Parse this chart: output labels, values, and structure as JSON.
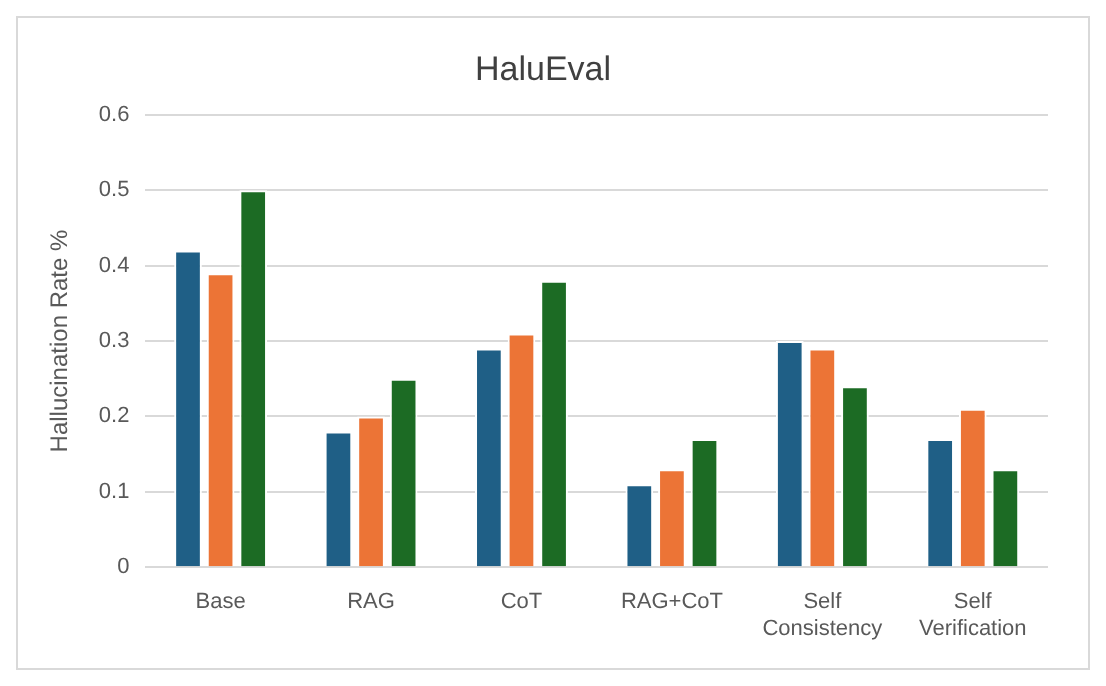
{
  "chart_data": {
    "type": "bar",
    "title": "HaluEval",
    "ylabel": "Hallucination Rate %",
    "categories": [
      "Base",
      "RAG",
      "CoT",
      "RAG+CoT",
      "Self Consistency",
      "Self Verification"
    ],
    "series": [
      {
        "color": "#1f5f86",
        "values": [
          0.42,
          0.18,
          0.29,
          0.11,
          0.3,
          0.17
        ]
      },
      {
        "color": "#ec7436",
        "values": [
          0.39,
          0.2,
          0.31,
          0.13,
          0.29,
          0.21
        ]
      },
      {
        "color": "#1c6b24",
        "values": [
          0.5,
          0.25,
          0.38,
          0.17,
          0.24,
          0.13
        ]
      }
    ],
    "ylim": [
      0,
      0.6
    ],
    "yticks": [
      {
        "value": 0,
        "label": "0"
      },
      {
        "value": 0.1,
        "label": "0.1"
      },
      {
        "value": 0.2,
        "label": "0.2"
      },
      {
        "value": 0.3,
        "label": "0.3"
      },
      {
        "value": 0.4,
        "label": "0.4"
      },
      {
        "value": 0.5,
        "label": "0.5"
      },
      {
        "value": 0.6,
        "label": "0.6"
      }
    ],
    "grid": "y"
  }
}
